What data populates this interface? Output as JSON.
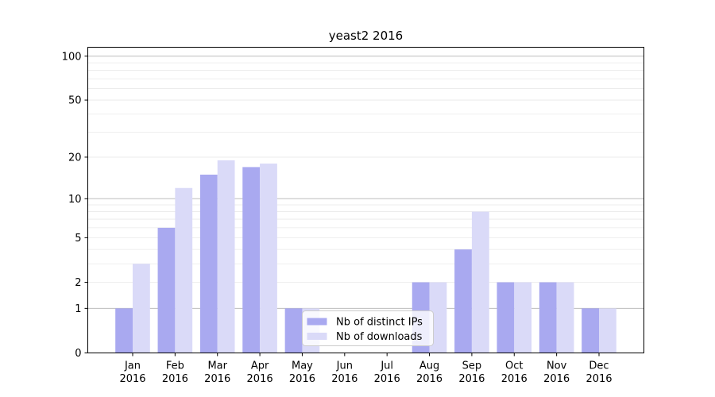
{
  "chart_data": {
    "type": "bar",
    "title": "yeast2 2016",
    "categories": [
      "Jan",
      "Feb",
      "Mar",
      "Apr",
      "May",
      "Jun",
      "Jul",
      "Aug",
      "Sep",
      "Oct",
      "Nov",
      "Dec"
    ],
    "category_year": "2016",
    "series": [
      {
        "name": "Nb of distinct IPs",
        "color": "#a9a9f0",
        "values": [
          1,
          6,
          15,
          17,
          1,
          0,
          0,
          2,
          4,
          2,
          2,
          1
        ]
      },
      {
        "name": "Nb of downloads",
        "color": "#dadaf8",
        "values": [
          3,
          12,
          19,
          18,
          1,
          0,
          0,
          2,
          8,
          2,
          2,
          1
        ]
      }
    ],
    "yscale": "log1p",
    "yticks": [
      0,
      1,
      2,
      5,
      10,
      20,
      50,
      100
    ],
    "ylim": [
      0,
      115
    ],
    "xlabel": "",
    "ylabel": "",
    "grid": {
      "major_ticks": [
        1,
        10,
        100
      ],
      "minor_ticks": [
        2,
        3,
        4,
        5,
        6,
        7,
        8,
        9,
        20,
        30,
        40,
        50,
        60,
        70,
        80,
        90
      ],
      "major_color": "#bdbdbd",
      "minor_color": "#e9e9e9"
    },
    "legend": {
      "position": "lower-center-left",
      "background": "rgba(255,255,255,0.8)",
      "border_color": "#cccccc"
    },
    "axis_color": "#000000",
    "background_color": "#ffffff"
  }
}
